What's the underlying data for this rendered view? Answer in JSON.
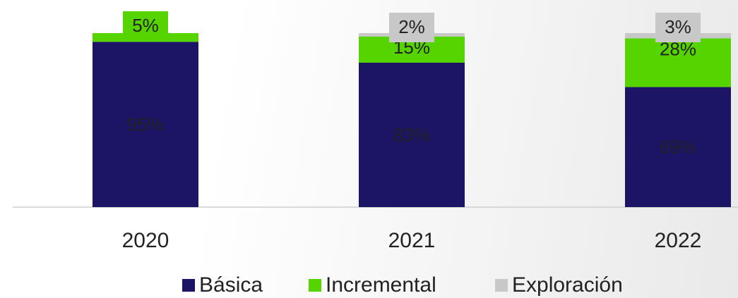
{
  "chart_data": {
    "type": "stacked_bar",
    "categories": [
      "2020",
      "2021",
      "2022"
    ],
    "ylim": [
      0,
      100
    ],
    "legend": "bottom",
    "series": [
      {
        "name": "Básica",
        "color": "#1c1464",
        "values": [
          95,
          83,
          69
        ],
        "value_labels": [
          "95%",
          "83%",
          "69%"
        ]
      },
      {
        "name": "Incremental",
        "color": "#55d400",
        "values": [
          5,
          15,
          28
        ],
        "value_labels": [
          "5%",
          "15%",
          "28%"
        ]
      },
      {
        "name": "Exploración",
        "color": "#c8c8c8",
        "values": [
          0,
          2,
          3
        ],
        "value_labels": [
          null,
          "2%",
          "3%"
        ]
      }
    ]
  }
}
